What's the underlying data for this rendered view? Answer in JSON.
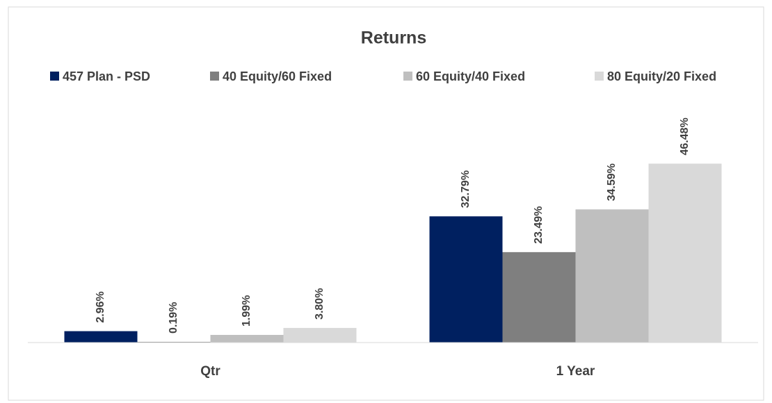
{
  "chart_data": {
    "type": "bar",
    "title": "Returns",
    "categories": [
      "Qtr",
      "1 Year"
    ],
    "series": [
      {
        "name": "457 Plan - PSD",
        "color": "#002060",
        "values": [
          2.96,
          32.79
        ],
        "value_labels": [
          "2.96%",
          "32.79%"
        ]
      },
      {
        "name": "40 Equity/60 Fixed",
        "color": "#7f7f7f",
        "values": [
          0.19,
          23.49
        ],
        "value_labels": [
          "0.19%",
          "23.49%"
        ]
      },
      {
        "name": "60 Equity/40 Fixed",
        "color": "#bfbfbf",
        "values": [
          1.99,
          34.59
        ],
        "value_labels": [
          "1.99%",
          "34.59%"
        ]
      },
      {
        "name": "80 Equity/20 Fixed",
        "color": "#d9d9d9",
        "values": [
          3.8,
          46.48
        ],
        "value_labels": [
          "3.80%",
          "46.48%"
        ]
      }
    ],
    "ylim": [
      0,
      50
    ],
    "legend": "top",
    "grid": false
  }
}
